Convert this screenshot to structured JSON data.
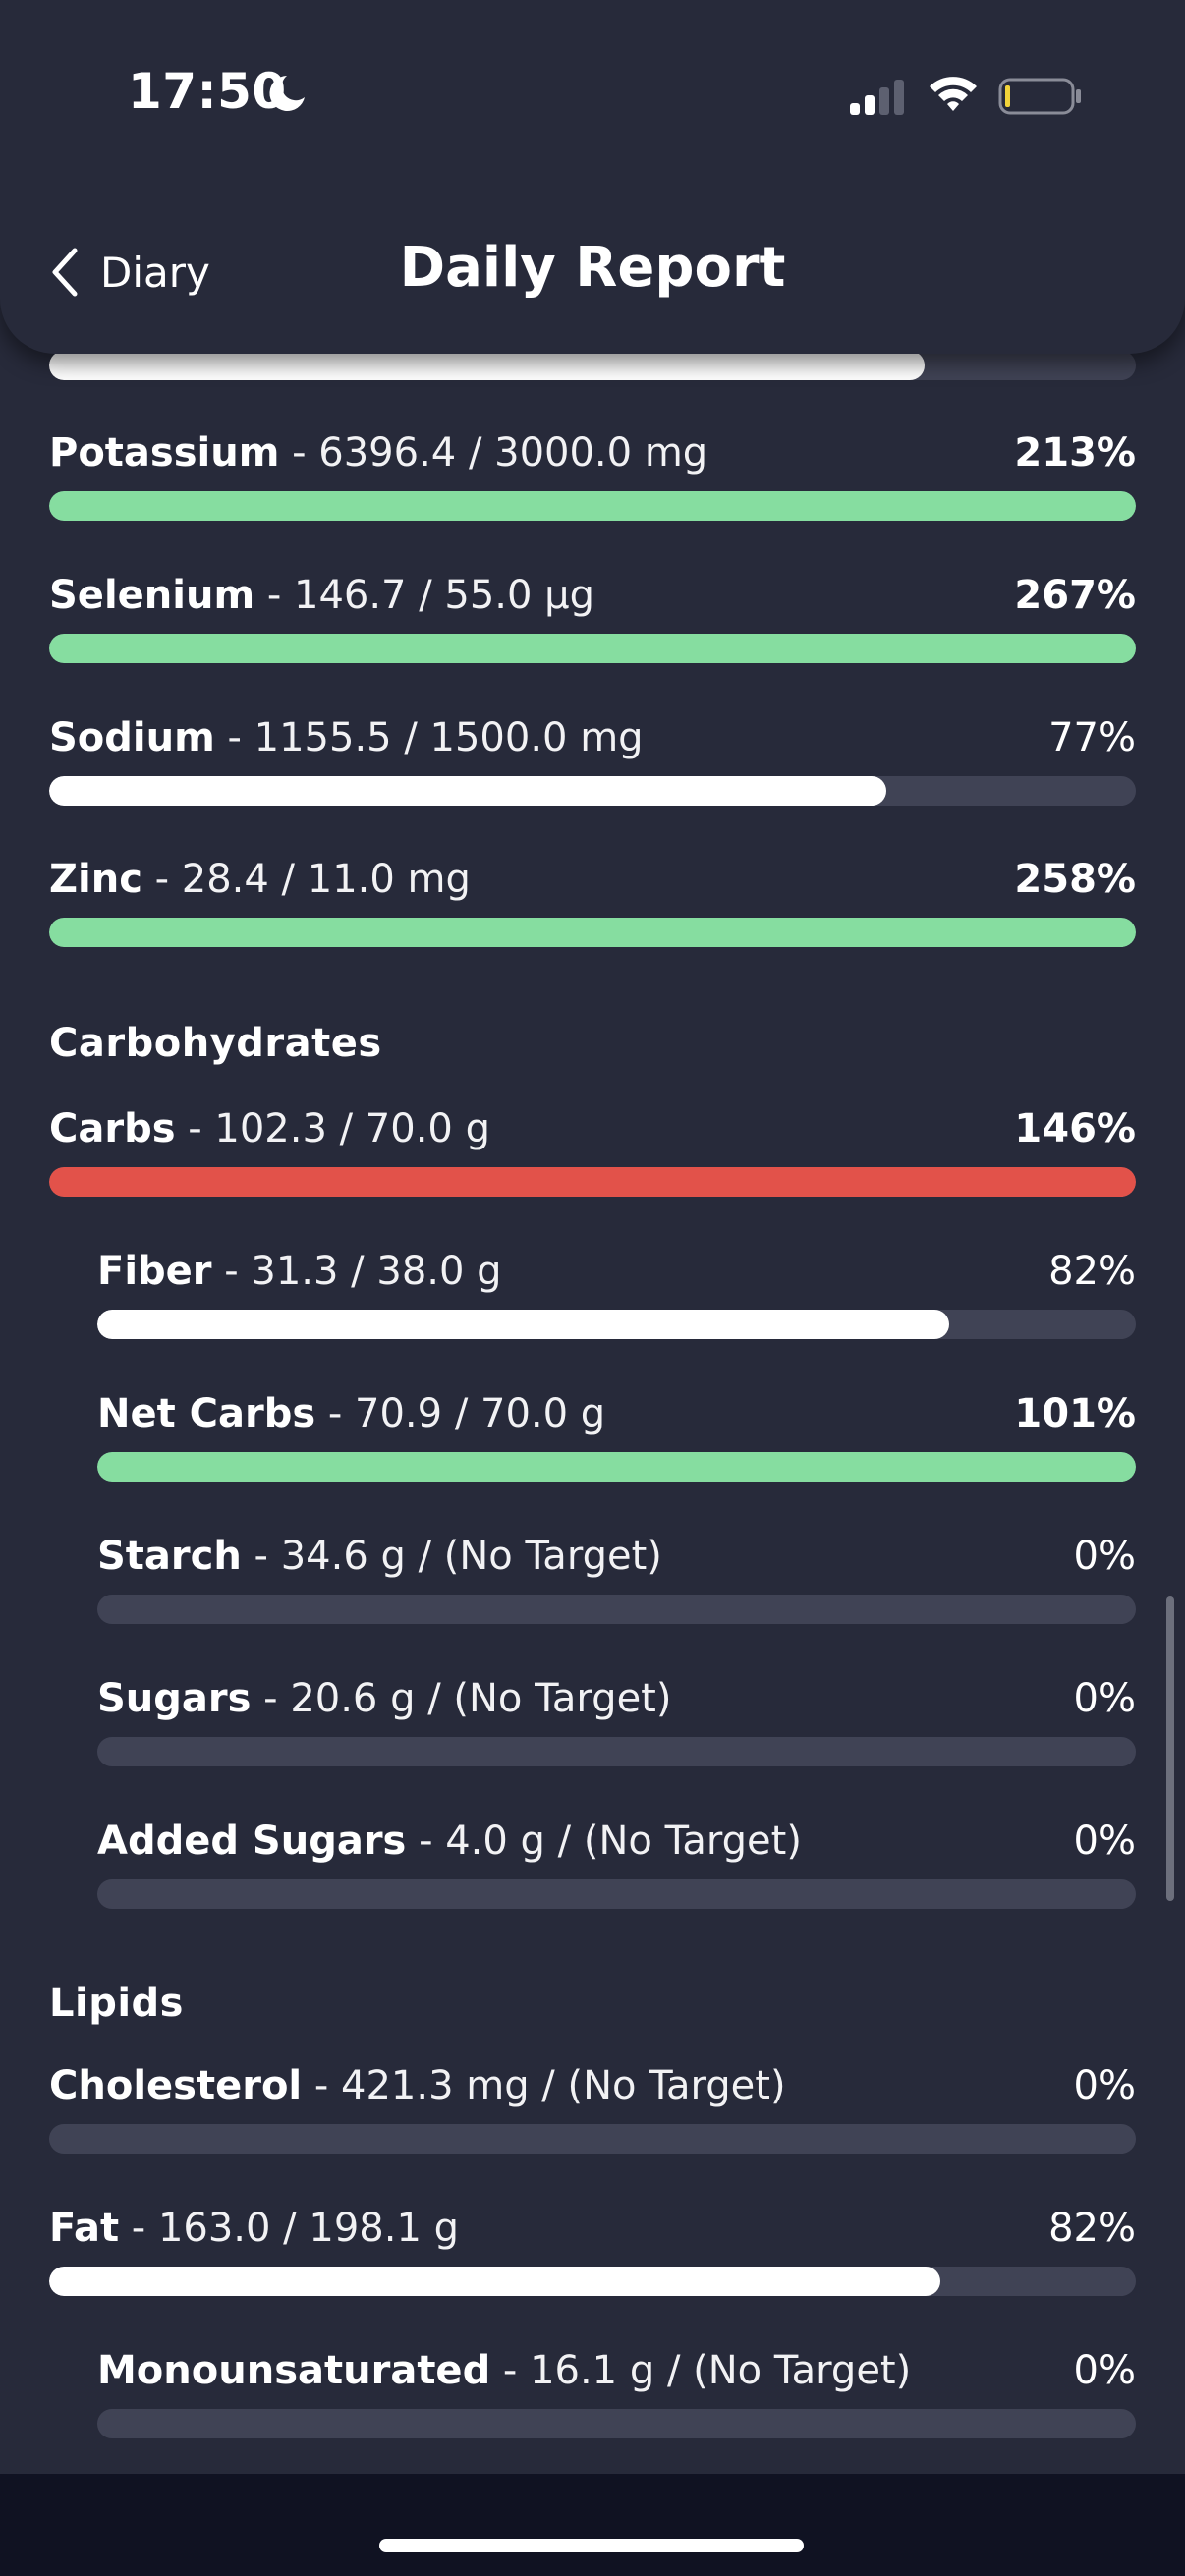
{
  "status_bar": {
    "time": "17:50"
  },
  "header": {
    "back_label": "Diary",
    "title": "Daily Report"
  },
  "partial_row": {
    "fill": 0.806
  },
  "minerals": [
    {
      "name": "Potassium",
      "detail": " - 6396.4 / 3000.0 mg",
      "percent": "213%",
      "fill": 1.0,
      "status": "green",
      "bold_pct": true
    },
    {
      "name": "Selenium",
      "detail": " - 146.7 / 55.0 µg",
      "percent": "267%",
      "fill": 1.0,
      "status": "green",
      "bold_pct": true
    },
    {
      "name": "Sodium",
      "detail": " - 1155.5 / 1500.0 mg",
      "percent": "77%",
      "fill": 0.77,
      "status": "white",
      "bold_pct": false
    },
    {
      "name": "Zinc",
      "detail": " - 28.4 / 11.0 mg",
      "percent": "258%",
      "fill": 1.0,
      "status": "green",
      "bold_pct": true
    }
  ],
  "carbohydrates": {
    "title": "Carbohydrates",
    "items": [
      {
        "name": "Carbs",
        "detail": " - 102.3 / 70.0 g",
        "percent": "146%",
        "fill": 1.0,
        "status": "red",
        "bold_pct": true,
        "sub": false
      },
      {
        "name": "Fiber",
        "detail": " - 31.3 / 38.0 g",
        "percent": "82%",
        "fill": 0.82,
        "status": "white",
        "bold_pct": false,
        "sub": true
      },
      {
        "name": "Net Carbs",
        "detail": " - 70.9 / 70.0 g",
        "percent": "101%",
        "fill": 1.0,
        "status": "green",
        "bold_pct": true,
        "sub": true
      },
      {
        "name": "Starch",
        "detail": " - 34.6 g / (No Target)",
        "percent": "0%",
        "fill": 0,
        "status": "none",
        "bold_pct": false,
        "sub": true
      },
      {
        "name": "Sugars",
        "detail": " - 20.6 g / (No Target)",
        "percent": "0%",
        "fill": 0,
        "status": "none",
        "bold_pct": false,
        "sub": true
      },
      {
        "name": "Added Sugars",
        "detail": " - 4.0 g / (No Target)",
        "percent": "0%",
        "fill": 0,
        "status": "none",
        "bold_pct": false,
        "sub": true
      }
    ]
  },
  "lipids": {
    "title": "Lipids",
    "items": [
      {
        "name": "Cholesterol",
        "detail": " - 421.3 mg / (No Target)",
        "percent": "0%",
        "fill": 0,
        "status": "none",
        "bold_pct": false,
        "sub": false
      },
      {
        "name": "Fat",
        "detail": " - 163.0 / 198.1 g",
        "percent": "82%",
        "fill": 0.82,
        "status": "white",
        "bold_pct": false,
        "sub": false
      },
      {
        "name": "Monounsaturated",
        "detail": " - 16.1 g / (No Target)",
        "percent": "0%",
        "fill": 0,
        "status": "none",
        "bold_pct": false,
        "sub": true
      }
    ]
  },
  "colors": {
    "background": "#272a3a",
    "track": "#404355",
    "green": "#86dda0",
    "red": "#e2524a",
    "white": "#ffffff"
  }
}
